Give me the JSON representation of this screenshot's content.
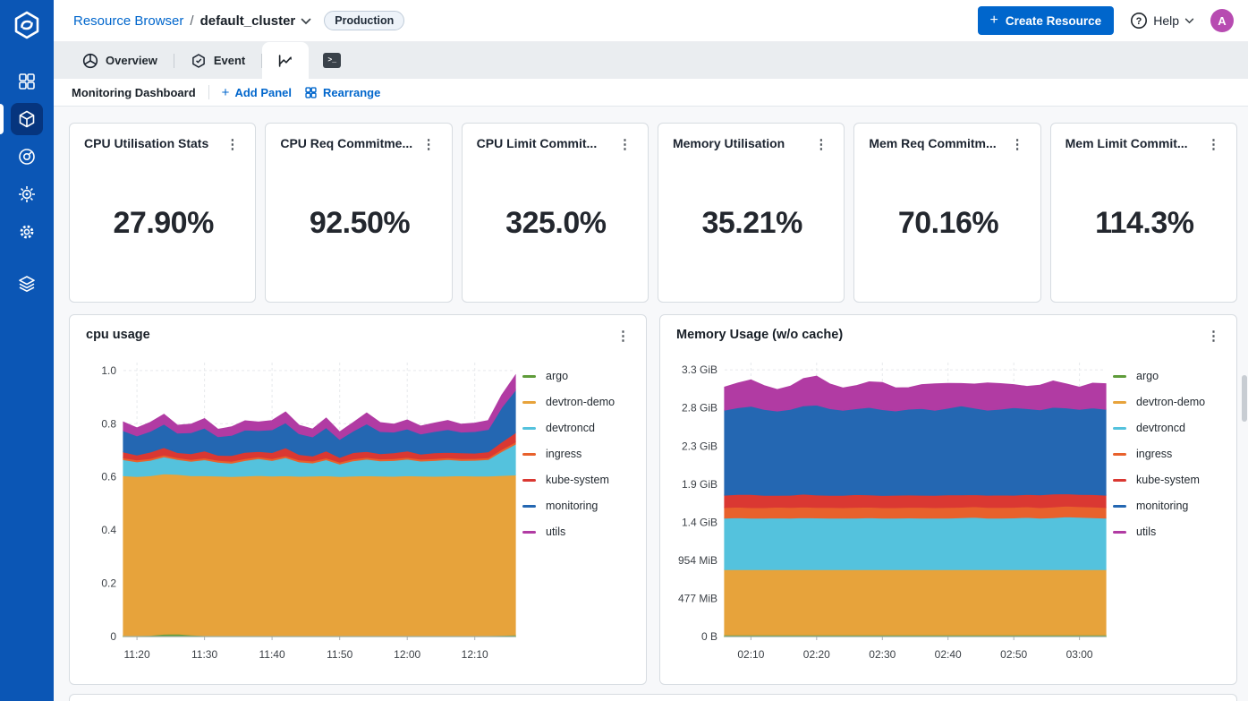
{
  "colors": {
    "accent": "#0066cc",
    "sidebar": "#0b56b5",
    "sidebar_active": "#06357e",
    "avatar": "#b74bb1",
    "badge_bg": "#eef3f9"
  },
  "sidebar": {
    "icons": [
      "devtron-logo",
      "apps-grid",
      "resource-browser-cube",
      "deployment-target",
      "global-config-sun",
      "settings-gear",
      "stack-layers"
    ]
  },
  "header": {
    "breadcrumb": {
      "root": "Resource Browser",
      "separator": "/",
      "current": "default_cluster"
    },
    "env_badge": "Production",
    "create_button": "Create Resource",
    "help_label": "Help",
    "avatar_initial": "A"
  },
  "tabs": {
    "overview": "Overview",
    "event": "Event",
    "icon_tabs": [
      "line-chart",
      "terminal"
    ],
    "terminal_glyph": ">_"
  },
  "toolbar": {
    "title": "Monitoring Dashboard",
    "add_panel": "Add Panel",
    "rearrange": "Rearrange"
  },
  "stat_cards": [
    {
      "title": "CPU Utilisation Stats",
      "value": "27.90%"
    },
    {
      "title": "CPU Req Commitme...",
      "value": "92.50%"
    },
    {
      "title": "CPU Limit Commit...",
      "value": "325.0%"
    },
    {
      "title": "Memory Utilisation",
      "value": "35.21%"
    },
    {
      "title": "Mem Req Commitm...",
      "value": "70.16%"
    },
    {
      "title": "Mem Limit Commit...",
      "value": "114.3%"
    }
  ],
  "chart_data": [
    {
      "type": "area",
      "title": "cpu usage",
      "xlabel": "",
      "ylabel": "",
      "legend_position": "right",
      "grid": true,
      "ymax": 1.03,
      "y_ticks": [
        {
          "v": 0,
          "label": "0"
        },
        {
          "v": 0.2,
          "label": "0.2"
        },
        {
          "v": 0.4,
          "label": "0.4"
        },
        {
          "v": 0.6,
          "label": "0.6"
        },
        {
          "v": 0.8,
          "label": "0.8"
        },
        {
          "v": 1.0,
          "label": "1.0"
        }
      ],
      "x_ticks": [
        {
          "i": 1,
          "label": "11:20"
        },
        {
          "i": 6,
          "label": "11:30"
        },
        {
          "i": 11,
          "label": "11:40"
        },
        {
          "i": 16,
          "label": "11:50"
        },
        {
          "i": 21,
          "label": "12:00"
        },
        {
          "i": 26,
          "label": "12:10"
        }
      ],
      "series": [
        {
          "name": "argo",
          "color": "#5f9c3a",
          "values": [
            0.004,
            0.004,
            0.005,
            0.009,
            0.01,
            0.006,
            0.004,
            0.004,
            0.004,
            0.004,
            0.004,
            0.004,
            0.004,
            0.004,
            0.004,
            0.004,
            0.004,
            0.004,
            0.004,
            0.004,
            0.004,
            0.004,
            0.004,
            0.004,
            0.004,
            0.004,
            0.004,
            0.004,
            0.005,
            0.006
          ]
        },
        {
          "name": "devtron-demo",
          "color": "#e7a33b",
          "values": [
            0.601,
            0.598,
            0.6,
            0.603,
            0.6,
            0.599,
            0.601,
            0.6,
            0.598,
            0.6,
            0.602,
            0.6,
            0.601,
            0.599,
            0.6,
            0.601,
            0.598,
            0.6,
            0.601,
            0.6,
            0.599,
            0.601,
            0.6,
            0.599,
            0.6,
            0.601,
            0.6,
            0.6,
            0.601,
            0.602
          ]
        },
        {
          "name": "devtroncd",
          "color": "#54c2dd",
          "values": [
            0.06,
            0.055,
            0.058,
            0.064,
            0.056,
            0.054,
            0.06,
            0.052,
            0.05,
            0.058,
            0.063,
            0.058,
            0.068,
            0.054,
            0.049,
            0.06,
            0.047,
            0.057,
            0.062,
            0.057,
            0.059,
            0.062,
            0.056,
            0.059,
            0.062,
            0.057,
            0.059,
            0.062,
            0.09,
            0.115
          ]
        },
        {
          "name": "ingress",
          "color": "#e8612c",
          "values": [
            0.007,
            0.007,
            0.007,
            0.007,
            0.007,
            0.007,
            0.007,
            0.007,
            0.007,
            0.007,
            0.007,
            0.007,
            0.007,
            0.007,
            0.007,
            0.007,
            0.007,
            0.007,
            0.007,
            0.007,
            0.007,
            0.007,
            0.007,
            0.007,
            0.007,
            0.007,
            0.007,
            0.007,
            0.008,
            0.008
          ]
        },
        {
          "name": "kube-system",
          "color": "#da3832",
          "values": [
            0.022,
            0.019,
            0.024,
            0.028,
            0.019,
            0.022,
            0.026,
            0.019,
            0.022,
            0.024,
            0.02,
            0.023,
            0.03,
            0.021,
            0.019,
            0.026,
            0.018,
            0.024,
            0.022,
            0.02,
            0.022,
            0.024,
            0.019,
            0.022,
            0.02,
            0.022,
            0.02,
            0.022,
            0.028,
            0.035
          ]
        },
        {
          "name": "monitoring",
          "color": "#2467b2",
          "values": [
            0.08,
            0.072,
            0.078,
            0.088,
            0.073,
            0.079,
            0.086,
            0.07,
            0.076,
            0.084,
            0.079,
            0.086,
            0.094,
            0.078,
            0.072,
            0.088,
            0.068,
            0.081,
            0.104,
            0.083,
            0.078,
            0.083,
            0.076,
            0.08,
            0.086,
            0.078,
            0.081,
            0.084,
            0.13,
            0.16
          ]
        },
        {
          "name": "utils",
          "color": "#b13ba3",
          "values": [
            0.032,
            0.029,
            0.033,
            0.036,
            0.029,
            0.031,
            0.035,
            0.027,
            0.031,
            0.034,
            0.031,
            0.034,
            0.04,
            0.031,
            0.029,
            0.035,
            0.027,
            0.031,
            0.04,
            0.033,
            0.029,
            0.033,
            0.029,
            0.031,
            0.033,
            0.029,
            0.031,
            0.033,
            0.045,
            0.055
          ]
        }
      ]
    },
    {
      "type": "area",
      "title": "Memory Usage (w/o cache)",
      "xlabel": "",
      "ylabel": "",
      "legend_position": "right",
      "grid": true,
      "ymax": 3.35,
      "y_ticks": [
        {
          "v": 0,
          "label": "0 B"
        },
        {
          "v": 0.466,
          "label": "477 MiB"
        },
        {
          "v": 0.932,
          "label": "954 MiB"
        },
        {
          "v": 1.397,
          "label": "1.4 GiB"
        },
        {
          "v": 1.863,
          "label": "1.9 GiB"
        },
        {
          "v": 2.329,
          "label": "2.3 GiB"
        },
        {
          "v": 2.795,
          "label": "2.8 GiB"
        },
        {
          "v": 3.261,
          "label": "3.3 GiB"
        }
      ],
      "x_ticks": [
        {
          "i": 2,
          "label": "02:10"
        },
        {
          "i": 7,
          "label": "02:20"
        },
        {
          "i": 12,
          "label": "02:30"
        },
        {
          "i": 17,
          "label": "02:40"
        },
        {
          "i": 22,
          "label": "02:50"
        },
        {
          "i": 27,
          "label": "03:00"
        }
      ],
      "series": [
        {
          "name": "argo",
          "color": "#5f9c3a",
          "values": [
            0.02,
            0.02,
            0.02,
            0.02,
            0.02,
            0.02,
            0.02,
            0.02,
            0.02,
            0.02,
            0.02,
            0.02,
            0.02,
            0.02,
            0.02,
            0.02,
            0.02,
            0.02,
            0.02,
            0.02,
            0.02,
            0.02,
            0.02,
            0.02,
            0.02,
            0.02,
            0.02,
            0.02,
            0.02,
            0.02
          ]
        },
        {
          "name": "devtron-demo",
          "color": "#e7a33b",
          "values": [
            0.8,
            0.8,
            0.8,
            0.8,
            0.8,
            0.8,
            0.8,
            0.8,
            0.8,
            0.8,
            0.8,
            0.8,
            0.8,
            0.8,
            0.8,
            0.8,
            0.8,
            0.8,
            0.8,
            0.8,
            0.8,
            0.8,
            0.8,
            0.8,
            0.8,
            0.8,
            0.8,
            0.8,
            0.8,
            0.8
          ]
        },
        {
          "name": "devtroncd",
          "color": "#54c2dd",
          "values": [
            0.63,
            0.634,
            0.63,
            0.628,
            0.632,
            0.63,
            0.635,
            0.632,
            0.63,
            0.628,
            0.63,
            0.634,
            0.63,
            0.628,
            0.632,
            0.63,
            0.628,
            0.63,
            0.635,
            0.64,
            0.63,
            0.628,
            0.632,
            0.638,
            0.63,
            0.635,
            0.645,
            0.64,
            0.635,
            0.63
          ]
        },
        {
          "name": "ingress",
          "color": "#e8612c",
          "values": [
            0.13,
            0.13,
            0.128,
            0.13,
            0.132,
            0.13,
            0.13,
            0.128,
            0.13,
            0.13,
            0.132,
            0.13,
            0.128,
            0.13,
            0.13,
            0.132,
            0.13,
            0.13,
            0.128,
            0.13,
            0.13,
            0.132,
            0.13,
            0.13,
            0.128,
            0.13,
            0.132,
            0.13,
            0.13,
            0.13
          ]
        },
        {
          "name": "kube-system",
          "color": "#da3832",
          "values": [
            0.15,
            0.155,
            0.16,
            0.15,
            0.145,
            0.15,
            0.158,
            0.152,
            0.148,
            0.15,
            0.155,
            0.15,
            0.148,
            0.152,
            0.15,
            0.148,
            0.15,
            0.154,
            0.15,
            0.146,
            0.15,
            0.152,
            0.148,
            0.15,
            0.155,
            0.16,
            0.15,
            0.148,
            0.152,
            0.15
          ]
        },
        {
          "name": "monitoring",
          "color": "#2467b2",
          "values": [
            1.04,
            1.06,
            1.08,
            1.05,
            1.03,
            1.05,
            1.08,
            1.1,
            1.06,
            1.04,
            1.05,
            1.07,
            1.05,
            1.03,
            1.05,
            1.06,
            1.04,
            1.06,
            1.09,
            1.06,
            1.04,
            1.05,
            1.07,
            1.05,
            1.04,
            1.06,
            1.05,
            1.04,
            1.06,
            1.05
          ]
        },
        {
          "name": "utils",
          "color": "#b13ba3",
          "values": [
            0.28,
            0.3,
            0.32,
            0.29,
            0.26,
            0.28,
            0.33,
            0.35,
            0.3,
            0.27,
            0.28,
            0.31,
            0.33,
            0.28,
            0.26,
            0.29,
            0.32,
            0.3,
            0.27,
            0.29,
            0.33,
            0.31,
            0.28,
            0.27,
            0.3,
            0.32,
            0.29,
            0.27,
            0.3,
            0.31
          ]
        }
      ]
    }
  ]
}
